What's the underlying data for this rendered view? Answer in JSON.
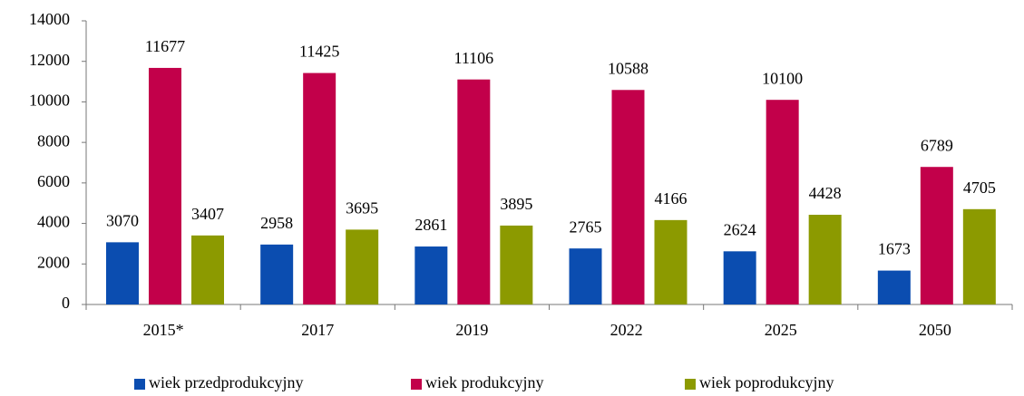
{
  "chart_data": {
    "type": "bar",
    "categories": [
      "2015*",
      "2017",
      "2019",
      "2022",
      "2025",
      "2050"
    ],
    "series": [
      {
        "name": "wiek przedprodukcyjny",
        "color": "#0b4db0",
        "values": [
          3070,
          2958,
          2861,
          2765,
          2624,
          1673
        ]
      },
      {
        "name": "wiek produkcyjny",
        "color": "#c2004a",
        "values": [
          11677,
          11425,
          11106,
          10588,
          10100,
          6789
        ]
      },
      {
        "name": "wiek poprodukcyjny",
        "color": "#8c9a00",
        "values": [
          3407,
          3695,
          3895,
          4166,
          4428,
          4705
        ]
      }
    ],
    "ylim": [
      0,
      14000
    ],
    "yticks": [
      0,
      2000,
      4000,
      6000,
      8000,
      10000,
      12000,
      14000
    ],
    "grid": false,
    "legend": "bottom"
  }
}
